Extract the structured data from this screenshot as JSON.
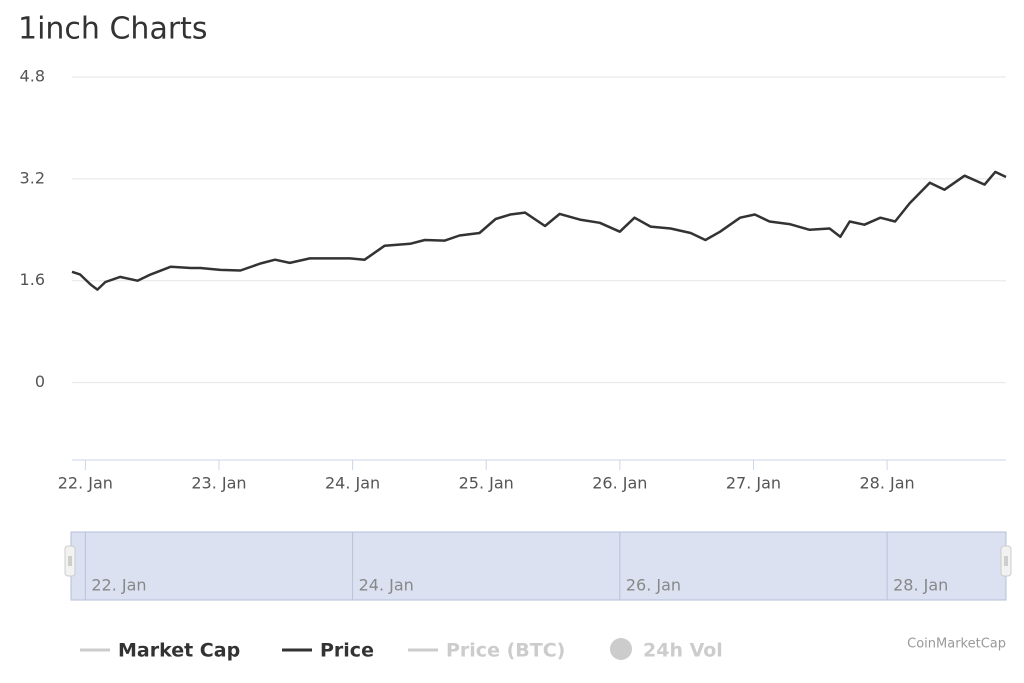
{
  "chart_data": {
    "type": "line",
    "title": "1inch Charts",
    "xlim": [
      -0.1,
      6.89
    ],
    "ylim": [
      -1.2,
      4.8
    ],
    "yticks": [
      0,
      1.6,
      3.2,
      4.8
    ],
    "xticks": [
      {
        "value": 0,
        "label": "22. Jan"
      },
      {
        "value": 1,
        "label": "23. Jan"
      },
      {
        "value": 2,
        "label": "24. Jan"
      },
      {
        "value": 3,
        "label": "25. Jan"
      },
      {
        "value": 4,
        "label": "26. Jan"
      },
      {
        "value": 5,
        "label": "27. Jan"
      },
      {
        "value": 6,
        "label": "28. Jan"
      }
    ],
    "grid": true,
    "x": [
      -0.1,
      -0.04,
      0.04,
      0.09,
      0.15,
      0.26,
      0.39,
      0.49,
      0.64,
      0.79,
      0.86,
      1.01,
      1.16,
      1.31,
      1.42,
      1.53,
      1.68,
      1.83,
      1.98,
      2.09,
      2.24,
      2.43,
      2.54,
      2.69,
      2.8,
      2.95,
      3.07,
      3.18,
      3.29,
      3.44,
      3.55,
      3.7,
      3.85,
      4.0,
      4.11,
      4.23,
      4.38,
      4.53,
      4.64,
      4.75,
      4.9,
      5.01,
      5.12,
      5.27,
      5.42,
      5.57,
      5.65,
      5.72,
      5.83,
      5.95,
      6.06,
      6.17,
      6.32,
      6.43,
      6.58,
      6.73,
      6.81,
      6.89
    ],
    "series": [
      {
        "name": "Price",
        "color": "#333333",
        "values": [
          1.74,
          1.7,
          1.54,
          1.46,
          1.58,
          1.66,
          1.6,
          1.7,
          1.82,
          1.8,
          1.8,
          1.77,
          1.76,
          1.87,
          1.93,
          1.88,
          1.95,
          1.95,
          1.95,
          1.93,
          2.15,
          2.18,
          2.24,
          2.23,
          2.31,
          2.35,
          2.57,
          2.64,
          2.67,
          2.46,
          2.65,
          2.56,
          2.51,
          2.37,
          2.59,
          2.45,
          2.42,
          2.35,
          2.24,
          2.37,
          2.59,
          2.64,
          2.53,
          2.49,
          2.4,
          2.42,
          2.29,
          2.53,
          2.48,
          2.59,
          2.53,
          2.82,
          3.14,
          3.03,
          3.25,
          3.11,
          3.31,
          3.23
        ]
      }
    ],
    "other_series": [
      {
        "name": "Market Cap",
        "visible": true
      },
      {
        "name": "Price (BTC)",
        "visible": false
      },
      {
        "name": "24h Vol",
        "visible": false
      }
    ],
    "navigator_xticks": [
      {
        "value": 0,
        "label": "22. Jan"
      },
      {
        "value": 2,
        "label": "24. Jan"
      },
      {
        "value": 4,
        "label": "26. Jan"
      },
      {
        "value": 6,
        "label": "28. Jan"
      }
    ],
    "credits": "CoinMarketCap"
  }
}
